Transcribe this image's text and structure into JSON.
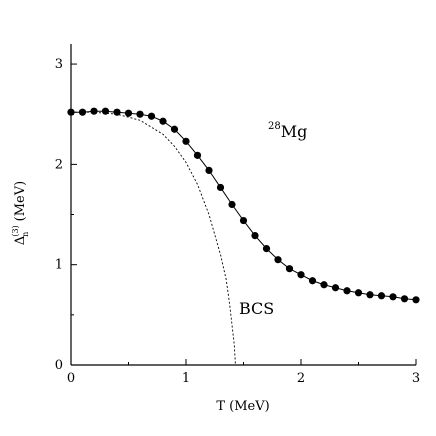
{
  "chart_data": {
    "type": "line",
    "xlabel": "T (MeV)",
    "ylabel": {
      "symbol": "Δ",
      "superscript": "(3)",
      "subscript": "n",
      "unit": "(MeV)"
    },
    "xlim": [
      0,
      3
    ],
    "ylim": [
      0,
      3.2
    ],
    "x_ticks": [
      "0",
      "1",
      "2",
      "3"
    ],
    "y_ticks": [
      "0",
      "1",
      "2",
      "3"
    ],
    "grid": false,
    "annotations": {
      "nucleus_mass": "28",
      "nucleus_symbol": "Mg",
      "bcs_label": "BCS"
    },
    "series": [
      {
        "style": "solid-line-with-markers",
        "x": [
          0,
          0.1,
          0.2,
          0.3,
          0.4,
          0.5,
          0.6,
          0.7,
          0.8,
          0.9,
          1.0,
          1.1,
          1.2,
          1.3,
          1.4,
          1.5,
          1.6,
          1.7,
          1.8,
          1.9,
          2.0,
          2.1,
          2.2,
          2.3,
          2.4,
          2.5,
          2.6,
          2.7,
          2.8,
          2.9,
          3.0
        ],
        "y": [
          2.52,
          2.52,
          2.53,
          2.53,
          2.52,
          2.51,
          2.5,
          2.48,
          2.43,
          2.35,
          2.23,
          2.09,
          1.94,
          1.77,
          1.6,
          1.44,
          1.29,
          1.16,
          1.05,
          0.96,
          0.9,
          0.84,
          0.8,
          0.77,
          0.74,
          0.72,
          0.7,
          0.69,
          0.68,
          0.66,
          0.65
        ]
      },
      {
        "style": "dashed-line",
        "x": [
          0,
          0.2,
          0.4,
          0.6,
          0.8,
          0.9,
          1.0,
          1.1,
          1.2,
          1.3,
          1.35,
          1.38,
          1.4,
          1.42,
          1.43
        ],
        "y": [
          2.52,
          2.52,
          2.5,
          2.44,
          2.3,
          2.18,
          2.02,
          1.8,
          1.5,
          1.1,
          0.85,
          0.6,
          0.4,
          0.2,
          0.0
        ]
      }
    ]
  }
}
